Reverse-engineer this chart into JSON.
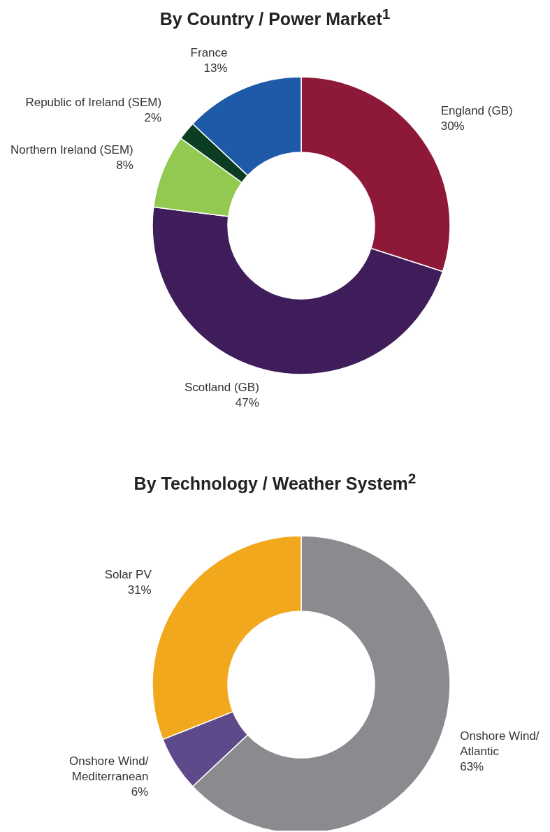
{
  "chart_data": [
    {
      "type": "donut",
      "title": "By Country / Power Market$^{1}$",
      "categories": [
        "England (GB)",
        "Scotland (GB)",
        "Northern Ireland (SEM)",
        "Republic of Ireland (SEM)",
        "France"
      ],
      "values": [
        30,
        47,
        8,
        2,
        13
      ],
      "colors": [
        "#8e1838",
        "#3f1d5a",
        "#92c951",
        "#0b3d22",
        "#1f5aa8"
      ],
      "value_labels": [
        "30%",
        "47%",
        "8%",
        "2%",
        "13%"
      ]
    },
    {
      "type": "donut",
      "title": "By Technology / Weather System$^{2}$",
      "categories": [
        "Onshore Wind/ Atlantic",
        "Onshore Wind/ Mediterranean",
        "Solar PV"
      ],
      "values": [
        63,
        6,
        31
      ],
      "colors": [
        "#8a8b8f",
        "#5e4a8a",
        "#f2a81d"
      ],
      "value_labels": [
        "63%",
        "6%",
        "31%"
      ]
    }
  ]
}
